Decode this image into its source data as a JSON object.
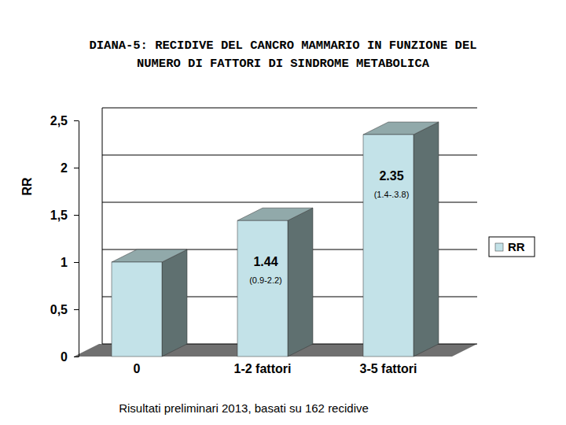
{
  "chart_data": {
    "type": "bar",
    "title": [
      "DIANA-5: RECIDIVE DEL CANCRO MAMMARIO IN FUNZIONE DEL",
      "NUMERO DI FATTORI DI SINDROME METABOLICA"
    ],
    "y_label": "RR",
    "categories": [
      "0",
      "1-2 fattori",
      "3-5 fattori"
    ],
    "series": [
      {
        "name": "RR",
        "color": "#c3e2e8",
        "values": [
          1,
          1.44,
          2.35
        ]
      }
    ],
    "data_labels": true,
    "value_labels": [
      null,
      "1.44",
      "2.35"
    ],
    "annotations": [
      null,
      "(0.9-2.2)",
      "(1.4-.3.8)"
    ],
    "footnote": "Risultati preliminari 2013, basati su 162 recidive",
    "ylim": [
      0,
      2.5
    ],
    "yticks": [
      0,
      {
        "value": 0.5,
        "label": "0,5"
      },
      1,
      {
        "value": 1.5,
        "label": "1,5"
      },
      2,
      {
        "value": 2.5,
        "label": "2,5"
      }
    ],
    "grid": true,
    "legend": "right"
  }
}
